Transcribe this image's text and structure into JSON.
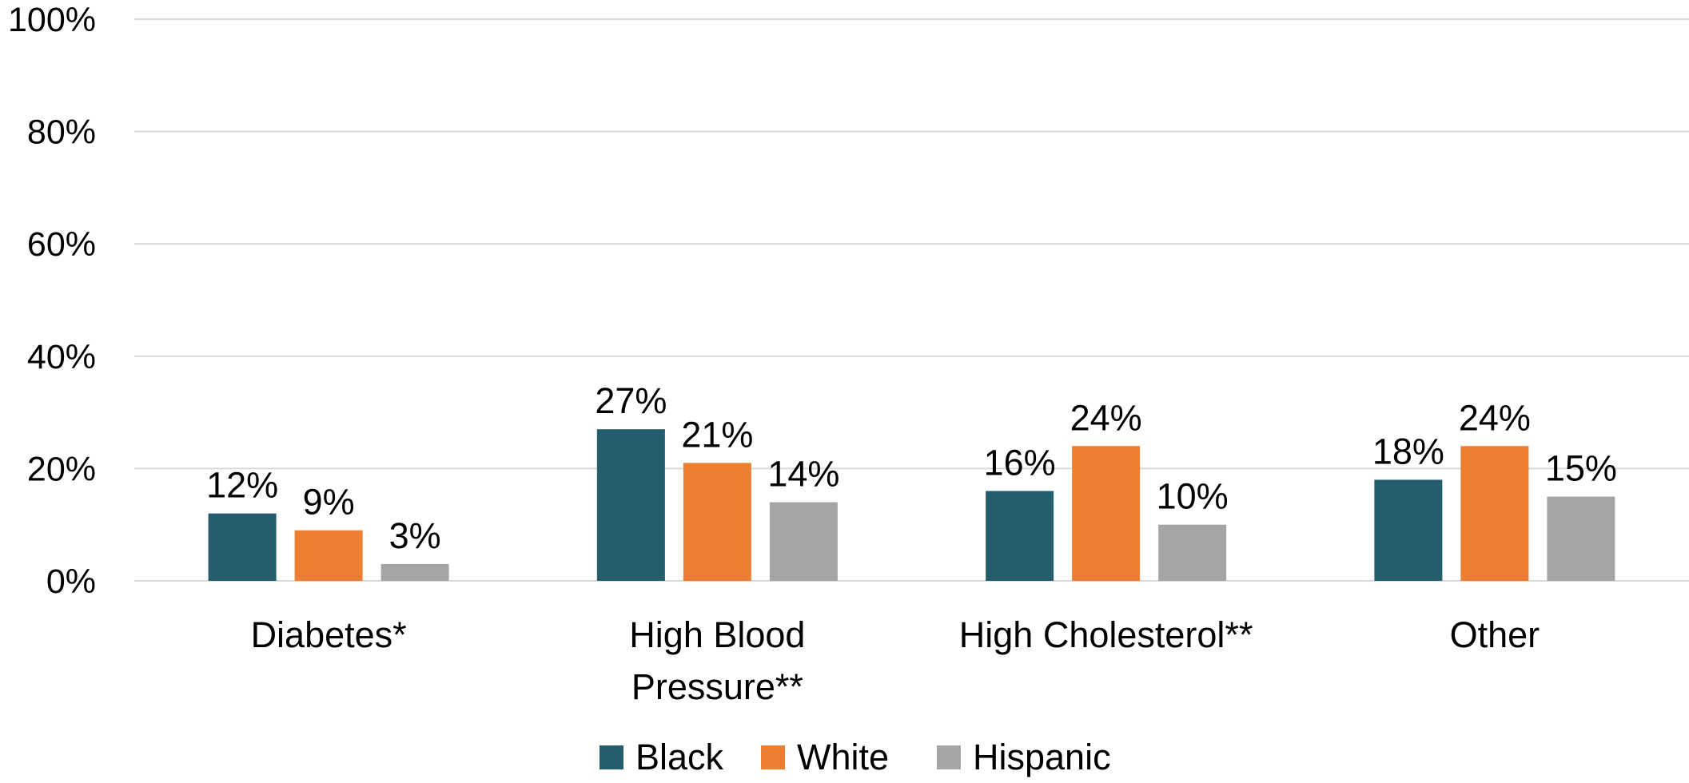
{
  "chart_data": {
    "type": "bar",
    "categories": [
      [
        "Diabetes*"
      ],
      [
        "High Blood",
        "Pressure**"
      ],
      [
        "High Cholesterol**"
      ],
      [
        "Other"
      ]
    ],
    "series": [
      {
        "name": "Black",
        "color": "#245e6e",
        "values": [
          12,
          27,
          16,
          18
        ],
        "labels": [
          "12%",
          "27%",
          "16%",
          "18%"
        ]
      },
      {
        "name": "White",
        "color": "#ed7d31",
        "values": [
          9,
          21,
          24,
          24
        ],
        "labels": [
          "9%",
          "21%",
          "24%",
          "24%"
        ]
      },
      {
        "name": "Hispanic",
        "color": "#a5a5a5",
        "values": [
          3,
          14,
          10,
          15
        ],
        "labels": [
          "3%",
          "14%",
          "10%",
          "15%"
        ]
      }
    ],
    "ylim": [
      0,
      100
    ],
    "yticks": [
      0,
      20,
      40,
      60,
      80,
      100
    ],
    "ytick_labels": [
      "0%",
      "20%",
      "40%",
      "60%",
      "80%",
      "100%"
    ],
    "grid": true,
    "legend": "bottom-center"
  }
}
